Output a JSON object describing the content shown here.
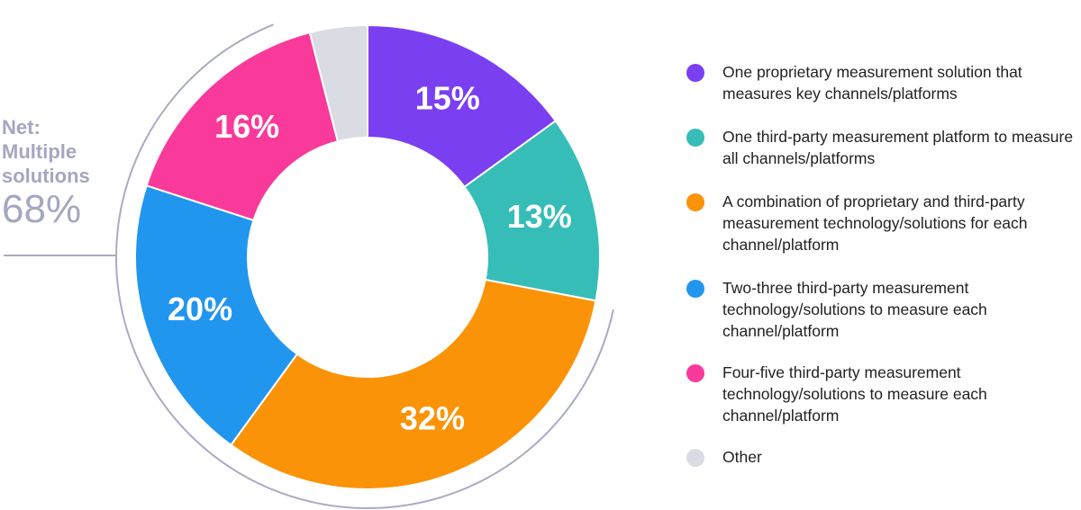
{
  "chart_data": {
    "type": "pie",
    "title": "",
    "slices": [
      {
        "label": "One proprietary measurement solution that measures key channels/platforms",
        "value": 15,
        "display": "15%",
        "color": "#7b3ff2"
      },
      {
        "label": "One third-party measurement platform to measure all channels/platforms",
        "value": 13,
        "display": "13%",
        "color": "#36bdb8"
      },
      {
        "label": "A combination of proprietary and third-party measurement technology/solutions for each channel/platform",
        "value": 32,
        "display": "32%",
        "color": "#fb9308"
      },
      {
        "label": "Two-three third-party measurement technology/solutions to measure each channel/platform",
        "value": 20,
        "display": "20%",
        "color": "#2196ef"
      },
      {
        "label": "Four-five third-party measurement technology/solutions to measure each channel/platform",
        "value": 16,
        "display": "16%",
        "color": "#f93a9a"
      },
      {
        "label": "Other",
        "value": 4,
        "display": "",
        "color": "#dadce3"
      }
    ],
    "legend_position": "right"
  },
  "net": {
    "line1": "Net:",
    "line2": "Multiple",
    "line3": "solutions",
    "value": "68%"
  },
  "colors": {
    "net_text": "#a3a7c0",
    "bracket_arc": "#a9abc2"
  }
}
